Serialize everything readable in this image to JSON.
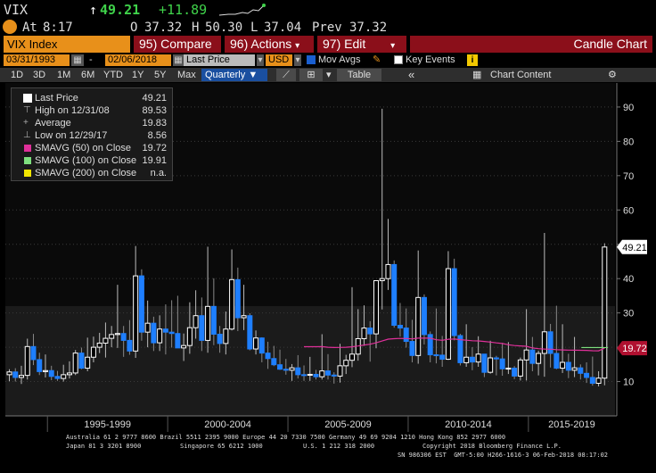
{
  "ticker": {
    "symbol": "VIX",
    "last": "49.21",
    "change": "+11.89",
    "at_label": "At",
    "time": "8:17",
    "open_label": "O",
    "open": "37.32",
    "high_label": "H",
    "high": "50.30",
    "low_label": "L",
    "low": "37.04",
    "prev_label": "Prev",
    "prev": "37.32"
  },
  "menu": {
    "security": "VIX Index",
    "compare": "95) Compare",
    "actions": "96) Actions",
    "edit": "97) Edit",
    "chart_type": "Candle Chart"
  },
  "controls": {
    "start_date": "03/31/1993",
    "end_date": "02/06/2018",
    "field": "Last Price",
    "currency": "USD",
    "mov_avgs": "Mov Avgs",
    "key_events": "Key Events"
  },
  "range_bar": {
    "ranges": [
      "1D",
      "3D",
      "1M",
      "6M",
      "YTD",
      "1Y",
      "5Y",
      "Max"
    ],
    "frequency": "Quarterly",
    "table": "Table",
    "chart_content": "Chart Content"
  },
  "legend": {
    "last_price_label": "Last Price",
    "last_price": "49.21",
    "high_label": "High on 12/31/08",
    "high": "89.53",
    "avg_label": "Average",
    "avg": "19.83",
    "low_label": "Low on 12/29/17",
    "low": "8.56",
    "sma50_label": "SMAVG (50) on Close",
    "sma50": "19.72",
    "sma100_label": "SMAVG (100) on Close",
    "sma100": "19.91",
    "sma200_label": "SMAVG (200) on Close",
    "sma200": "n.a."
  },
  "colors": {
    "accent": "#e8901a",
    "menu_red": "#8b0f1a",
    "up_candle": "#ffffff",
    "down_candle": "#1e7fff",
    "sma50": "#e0309a",
    "sma100": "#7ee07e",
    "sma200": "#f2e600",
    "last_price_tag": "#ffffff",
    "sma_tag": "#b01030"
  },
  "chart_data": {
    "type": "candlestick",
    "title": "",
    "xlabel": "",
    "ylabel": "",
    "frequency": "Quarterly",
    "x_tick_labels": [
      "1995-1999",
      "2000-2004",
      "2005-2009",
      "2010-2014",
      "2015-2019"
    ],
    "y_ticks": [
      10,
      20,
      30,
      40,
      50,
      60,
      70,
      80,
      90
    ],
    "ylim": [
      0,
      97
    ],
    "last_price_tag": "49.21",
    "sma_tag": "19.72",
    "candles": [
      {
        "date": "1993-06",
        "open": 12.0,
        "high": 13.6,
        "low": 10.1,
        "close": 12.8
      },
      {
        "date": "1993-09",
        "open": 12.8,
        "high": 13.9,
        "low": 10.0,
        "close": 11.2
      },
      {
        "date": "1993-12",
        "open": 11.2,
        "high": 14.6,
        "low": 9.3,
        "close": 11.8
      },
      {
        "date": "1994-03",
        "open": 11.8,
        "high": 22.5,
        "low": 10.6,
        "close": 20.2
      },
      {
        "date": "1994-06",
        "open": 20.2,
        "high": 23.9,
        "low": 14.8,
        "close": 16.4
      },
      {
        "date": "1994-09",
        "open": 16.4,
        "high": 18.4,
        "low": 11.9,
        "close": 12.9
      },
      {
        "date": "1994-12",
        "open": 12.9,
        "high": 17.9,
        "low": 11.2,
        "close": 13.2
      },
      {
        "date": "1995-03",
        "open": 13.2,
        "high": 14.6,
        "low": 10.4,
        "close": 11.5
      },
      {
        "date": "1995-06",
        "open": 11.5,
        "high": 13.1,
        "low": 10.2,
        "close": 10.9
      },
      {
        "date": "1995-09",
        "open": 10.9,
        "high": 14.9,
        "low": 10.0,
        "close": 12.0
      },
      {
        "date": "1995-12",
        "open": 12.0,
        "high": 15.9,
        "low": 10.9,
        "close": 12.5
      },
      {
        "date": "1996-03",
        "open": 12.5,
        "high": 19.2,
        "low": 11.9,
        "close": 18.3
      },
      {
        "date": "1996-06",
        "open": 18.3,
        "high": 19.9,
        "low": 13.6,
        "close": 13.9
      },
      {
        "date": "1996-09",
        "open": 13.9,
        "high": 22.8,
        "low": 13.0,
        "close": 17.1
      },
      {
        "date": "1996-12",
        "open": 17.1,
        "high": 23.1,
        "low": 15.6,
        "close": 20.0
      },
      {
        "date": "1997-03",
        "open": 20.0,
        "high": 24.2,
        "low": 18.3,
        "close": 21.2
      },
      {
        "date": "1997-06",
        "open": 21.2,
        "high": 27.2,
        "low": 17.0,
        "close": 22.6
      },
      {
        "date": "1997-09",
        "open": 22.6,
        "high": 26.2,
        "low": 20.0,
        "close": 23.7
      },
      {
        "date": "1997-12",
        "open": 23.7,
        "high": 38.2,
        "low": 19.8,
        "close": 24.0
      },
      {
        "date": "1998-03",
        "open": 24.0,
        "high": 26.2,
        "low": 17.2,
        "close": 22.0
      },
      {
        "date": "1998-06",
        "open": 22.0,
        "high": 27.9,
        "low": 17.8,
        "close": 18.9
      },
      {
        "date": "1998-09",
        "open": 18.9,
        "high": 49.5,
        "low": 16.9,
        "close": 40.8
      },
      {
        "date": "1998-12",
        "open": 40.8,
        "high": 42.7,
        "low": 21.9,
        "close": 24.4
      },
      {
        "date": "1999-03",
        "open": 24.4,
        "high": 33.6,
        "low": 20.0,
        "close": 27.0
      },
      {
        "date": "1999-06",
        "open": 27.0,
        "high": 28.9,
        "low": 18.9,
        "close": 21.3
      },
      {
        "date": "1999-09",
        "open": 21.3,
        "high": 29.3,
        "low": 18.9,
        "close": 25.3
      },
      {
        "date": "1999-12",
        "open": 25.3,
        "high": 32.5,
        "low": 17.9,
        "close": 24.4
      },
      {
        "date": "2000-03",
        "open": 24.4,
        "high": 33.7,
        "low": 19.9,
        "close": 24.0
      },
      {
        "date": "2000-06",
        "open": 24.0,
        "high": 35.0,
        "low": 19.9,
        "close": 19.8
      },
      {
        "date": "2000-09",
        "open": 19.8,
        "high": 24.0,
        "low": 16.0,
        "close": 20.5
      },
      {
        "date": "2000-12",
        "open": 20.5,
        "high": 33.1,
        "low": 18.1,
        "close": 25.7
      },
      {
        "date": "2001-03",
        "open": 25.7,
        "high": 36.6,
        "low": 22.5,
        "close": 29.2
      },
      {
        "date": "2001-06",
        "open": 29.2,
        "high": 34.5,
        "low": 18.9,
        "close": 22.0
      },
      {
        "date": "2001-09",
        "open": 22.0,
        "high": 49.3,
        "low": 18.4,
        "close": 31.9
      },
      {
        "date": "2001-12",
        "open": 31.9,
        "high": 40.1,
        "low": 20.6,
        "close": 23.8
      },
      {
        "date": "2002-03",
        "open": 23.8,
        "high": 26.2,
        "low": 18.4,
        "close": 21.1
      },
      {
        "date": "2002-06",
        "open": 21.1,
        "high": 30.4,
        "low": 17.9,
        "close": 25.3
      },
      {
        "date": "2002-09",
        "open": 25.3,
        "high": 48.5,
        "low": 24.9,
        "close": 39.7
      },
      {
        "date": "2002-12",
        "open": 39.7,
        "high": 43.2,
        "low": 24.7,
        "close": 28.6
      },
      {
        "date": "2003-03",
        "open": 28.6,
        "high": 38.2,
        "low": 25.0,
        "close": 29.2
      },
      {
        "date": "2003-06",
        "open": 29.2,
        "high": 29.9,
        "low": 19.1,
        "close": 19.5
      },
      {
        "date": "2003-09",
        "open": 19.5,
        "high": 24.9,
        "low": 17.9,
        "close": 22.7
      },
      {
        "date": "2003-12",
        "open": 22.7,
        "high": 22.9,
        "low": 15.6,
        "close": 18.3
      },
      {
        "date": "2004-03",
        "open": 18.3,
        "high": 21.6,
        "low": 13.7,
        "close": 16.7
      },
      {
        "date": "2004-06",
        "open": 16.7,
        "high": 20.4,
        "low": 14.5,
        "close": 14.9
      },
      {
        "date": "2004-09",
        "open": 14.9,
        "high": 19.3,
        "low": 13.4,
        "close": 13.6
      },
      {
        "date": "2004-12",
        "open": 13.6,
        "high": 16.6,
        "low": 12.0,
        "close": 13.3
      },
      {
        "date": "2005-03",
        "open": 13.3,
        "high": 15.1,
        "low": 10.2,
        "close": 14.0
      },
      {
        "date": "2005-06",
        "open": 14.0,
        "high": 17.7,
        "low": 10.9,
        "close": 12.0
      },
      {
        "date": "2005-09",
        "open": 12.0,
        "high": 14.7,
        "low": 10.2,
        "close": 11.9
      },
      {
        "date": "2005-12",
        "open": 11.9,
        "high": 17.2,
        "low": 10.2,
        "close": 12.1
      },
      {
        "date": "2006-03",
        "open": 12.1,
        "high": 13.4,
        "low": 10.6,
        "close": 11.4
      },
      {
        "date": "2006-06",
        "open": 11.4,
        "high": 23.8,
        "low": 10.6,
        "close": 13.1
      },
      {
        "date": "2006-09",
        "open": 13.1,
        "high": 18.0,
        "low": 10.6,
        "close": 11.9
      },
      {
        "date": "2006-12",
        "open": 11.9,
        "high": 12.7,
        "low": 9.4,
        "close": 11.6
      },
      {
        "date": "2007-03",
        "open": 11.6,
        "high": 21.0,
        "low": 9.7,
        "close": 14.6
      },
      {
        "date": "2007-06",
        "open": 14.6,
        "high": 17.8,
        "low": 12.2,
        "close": 16.2
      },
      {
        "date": "2007-09",
        "open": 16.2,
        "high": 37.5,
        "low": 14.2,
        "close": 18.0
      },
      {
        "date": "2007-12",
        "open": 18.0,
        "high": 31.1,
        "low": 16.1,
        "close": 22.5
      },
      {
        "date": "2008-03",
        "open": 22.5,
        "high": 32.2,
        "low": 20.4,
        "close": 25.6
      },
      {
        "date": "2008-06",
        "open": 25.6,
        "high": 27.6,
        "low": 15.8,
        "close": 23.9
      },
      {
        "date": "2008-09",
        "open": 23.9,
        "high": 39.2,
        "low": 19.7,
        "close": 39.4
      },
      {
        "date": "2008-12",
        "open": 39.4,
        "high": 89.5,
        "low": 31.0,
        "close": 40.0
      },
      {
        "date": "2009-03",
        "open": 40.0,
        "high": 57.4,
        "low": 36.7,
        "close": 44.1
      },
      {
        "date": "2009-06",
        "open": 44.1,
        "high": 45.3,
        "low": 25.7,
        "close": 26.4
      },
      {
        "date": "2009-09",
        "open": 26.4,
        "high": 32.9,
        "low": 23.1,
        "close": 25.6
      },
      {
        "date": "2009-12",
        "open": 25.6,
        "high": 31.3,
        "low": 19.9,
        "close": 21.7
      },
      {
        "date": "2010-03",
        "open": 21.7,
        "high": 28.0,
        "low": 15.6,
        "close": 17.6
      },
      {
        "date": "2010-06",
        "open": 17.6,
        "high": 48.2,
        "low": 15.2,
        "close": 34.5
      },
      {
        "date": "2010-09",
        "open": 34.5,
        "high": 35.4,
        "low": 20.8,
        "close": 23.7
      },
      {
        "date": "2010-12",
        "open": 23.7,
        "high": 24.6,
        "low": 15.6,
        "close": 17.8
      },
      {
        "date": "2011-03",
        "open": 17.8,
        "high": 31.3,
        "low": 15.3,
        "close": 17.7
      },
      {
        "date": "2011-06",
        "open": 17.7,
        "high": 23.3,
        "low": 14.3,
        "close": 16.5
      },
      {
        "date": "2011-09",
        "open": 16.5,
        "high": 48.0,
        "low": 16.3,
        "close": 42.9
      },
      {
        "date": "2011-12",
        "open": 42.9,
        "high": 45.8,
        "low": 22.0,
        "close": 23.4
      },
      {
        "date": "2012-03",
        "open": 23.4,
        "high": 23.9,
        "low": 14.7,
        "close": 15.5
      },
      {
        "date": "2012-06",
        "open": 15.5,
        "high": 26.7,
        "low": 14.3,
        "close": 17.1
      },
      {
        "date": "2012-09",
        "open": 17.1,
        "high": 20.0,
        "low": 13.3,
        "close": 15.7
      },
      {
        "date": "2012-12",
        "open": 15.7,
        "high": 23.2,
        "low": 14.3,
        "close": 18.0
      },
      {
        "date": "2013-03",
        "open": 18.0,
        "high": 18.0,
        "low": 11.3,
        "close": 12.7
      },
      {
        "date": "2013-06",
        "open": 12.7,
        "high": 21.9,
        "low": 12.3,
        "close": 16.9
      },
      {
        "date": "2013-09",
        "open": 16.9,
        "high": 17.5,
        "low": 11.8,
        "close": 16.6
      },
      {
        "date": "2013-12",
        "open": 16.6,
        "high": 21.3,
        "low": 11.7,
        "close": 13.7
      },
      {
        "date": "2014-03",
        "open": 13.7,
        "high": 21.5,
        "low": 12.2,
        "close": 13.9
      },
      {
        "date": "2014-06",
        "open": 13.9,
        "high": 14.5,
        "low": 10.7,
        "close": 11.6
      },
      {
        "date": "2014-09",
        "open": 11.6,
        "high": 17.0,
        "low": 10.3,
        "close": 16.3
      },
      {
        "date": "2014-12",
        "open": 16.3,
        "high": 31.1,
        "low": 10.3,
        "close": 19.2
      },
      {
        "date": "2015-03",
        "open": 19.2,
        "high": 23.0,
        "low": 13.0,
        "close": 15.3
      },
      {
        "date": "2015-06",
        "open": 15.3,
        "high": 19.0,
        "low": 11.8,
        "close": 18.2
      },
      {
        "date": "2015-09",
        "open": 18.2,
        "high": 53.3,
        "low": 11.4,
        "close": 24.5
      },
      {
        "date": "2015-12",
        "open": 24.5,
        "high": 26.8,
        "low": 14.1,
        "close": 18.2
      },
      {
        "date": "2016-03",
        "open": 18.2,
        "high": 32.1,
        "low": 13.6,
        "close": 13.9
      },
      {
        "date": "2016-06",
        "open": 13.9,
        "high": 26.7,
        "low": 12.5,
        "close": 15.6
      },
      {
        "date": "2016-09",
        "open": 15.6,
        "high": 18.1,
        "low": 11.0,
        "close": 13.3
      },
      {
        "date": "2016-12",
        "open": 13.3,
        "high": 23.0,
        "low": 11.3,
        "close": 14.0
      },
      {
        "date": "2017-03",
        "open": 14.0,
        "high": 15.0,
        "low": 10.6,
        "close": 12.4
      },
      {
        "date": "2017-06",
        "open": 12.4,
        "high": 15.6,
        "low": 9.6,
        "close": 11.2
      },
      {
        "date": "2017-09",
        "open": 11.2,
        "high": 17.3,
        "low": 8.8,
        "close": 9.5
      },
      {
        "date": "2017-12",
        "open": 9.5,
        "high": 13.0,
        "low": 8.6,
        "close": 11.0
      },
      {
        "date": "2018-03",
        "open": 11.0,
        "high": 50.3,
        "low": 8.9,
        "close": 49.2
      }
    ],
    "series": [
      {
        "name": "SMAVG (50) on Close",
        "start": "2005-09",
        "values": [
          19.72
        ]
      },
      {
        "name": "SMAVG (100) on Close",
        "values": [
          19.91
        ]
      },
      {
        "name": "SMAVG (200) on Close",
        "values": []
      }
    ]
  },
  "footer": {
    "line1": "Australia 61 2 9777 8600 Brazil 5511 2395 9000 Europe 44 20 7330 7500 Germany 49 69 9204 1210 Hong Kong 852 2977 6000",
    "line2a": "Japan 81 3 3201 8900",
    "line2b": "Singapore 65 6212 1000",
    "line2c": "U.S. 1 212 318 2000",
    "line2d": "Copyright 2018 Bloomberg Finance L.P.",
    "line3": "SN 986306 EST  GMT-5:00 H266-1616-3 06-Feb-2018 08:17:02"
  }
}
